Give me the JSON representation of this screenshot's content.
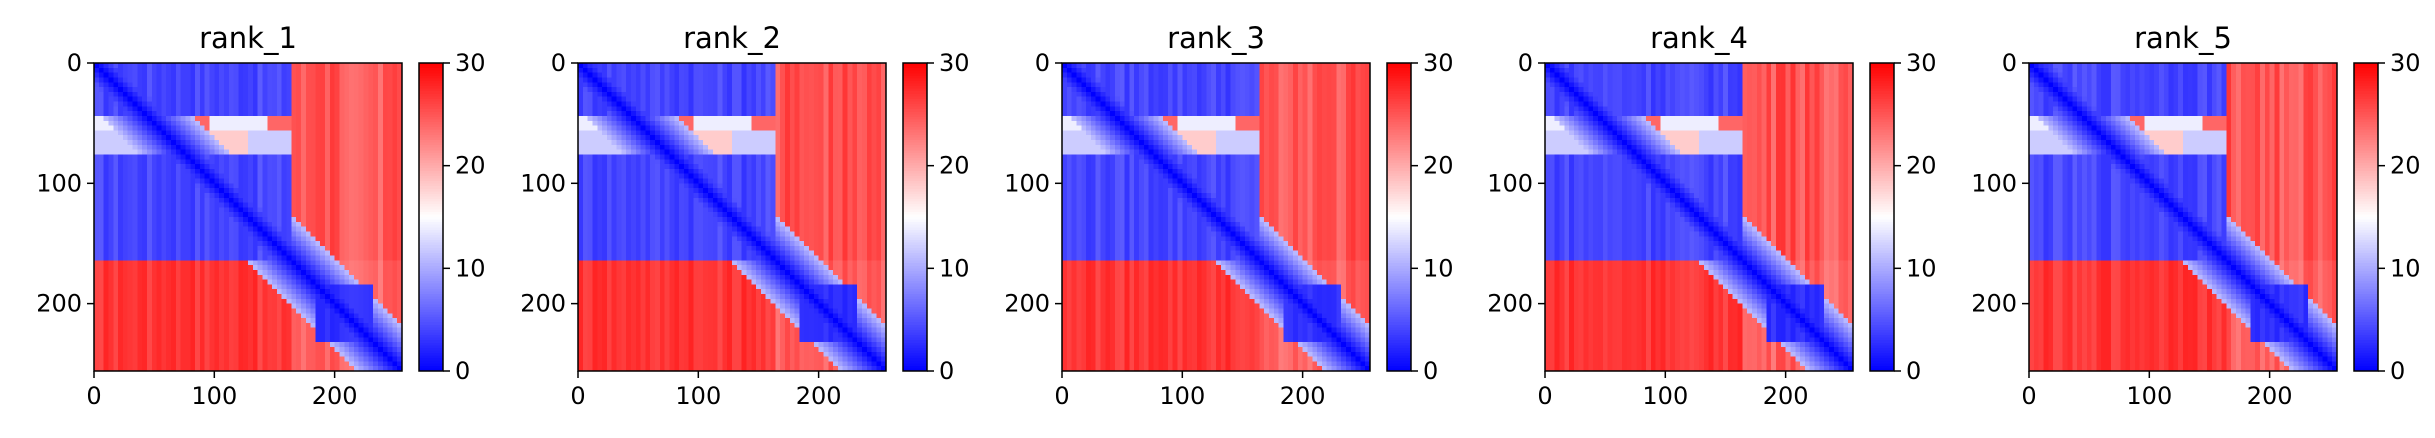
{
  "figure": {
    "panel_count": 5
  },
  "chart_data": [
    {
      "type": "heatmap",
      "title": "rank_1",
      "xlim": [
        0,
        256
      ],
      "ylim": [
        256,
        0
      ],
      "x_ticks": [
        0,
        100,
        200
      ],
      "y_ticks": [
        0,
        100,
        200
      ],
      "colorbar": {
        "min": 0,
        "max": 30,
        "ticks": [
          0,
          10,
          20,
          30
        ],
        "colors": [
          "#0000ff",
          "#ffffff",
          "#ff0000"
        ]
      },
      "matrix_summary": {
        "blue_region_end": 165,
        "red_level": 30,
        "sub_block": [
          185,
          230
        ],
        "stripe_rows": [
          51,
          64
        ]
      }
    },
    {
      "type": "heatmap",
      "title": "rank_2",
      "xlim": [
        0,
        256
      ],
      "ylim": [
        256,
        0
      ],
      "x_ticks": [
        0,
        100,
        200
      ],
      "y_ticks": [
        0,
        100,
        200
      ],
      "colorbar": {
        "min": 0,
        "max": 30,
        "ticks": [
          0,
          10,
          20,
          30
        ],
        "colors": [
          "#0000ff",
          "#ffffff",
          "#ff0000"
        ]
      },
      "matrix_summary": {
        "blue_region_end": 165,
        "red_level": 30,
        "sub_block": [
          185,
          230
        ],
        "stripe_rows": [
          51,
          64
        ]
      }
    },
    {
      "type": "heatmap",
      "title": "rank_3",
      "xlim": [
        0,
        256
      ],
      "ylim": [
        256,
        0
      ],
      "x_ticks": [
        0,
        100,
        200
      ],
      "y_ticks": [
        0,
        100,
        200
      ],
      "colorbar": {
        "min": 0,
        "max": 30,
        "ticks": [
          0,
          10,
          20,
          30
        ],
        "colors": [
          "#0000ff",
          "#ffffff",
          "#ff0000"
        ]
      },
      "matrix_summary": {
        "blue_region_end": 165,
        "red_level": 30,
        "sub_block": [
          185,
          230
        ],
        "stripe_rows": [
          51,
          64
        ]
      }
    },
    {
      "type": "heatmap",
      "title": "rank_4",
      "xlim": [
        0,
        256
      ],
      "ylim": [
        256,
        0
      ],
      "x_ticks": [
        0,
        100,
        200
      ],
      "y_ticks": [
        0,
        100,
        200
      ],
      "colorbar": {
        "min": 0,
        "max": 30,
        "ticks": [
          0,
          10,
          20,
          30
        ],
        "colors": [
          "#0000ff",
          "#ffffff",
          "#ff0000"
        ]
      },
      "matrix_summary": {
        "blue_region_end": 165,
        "red_level": 30,
        "sub_block": [
          185,
          230
        ],
        "stripe_rows": [
          51,
          64
        ]
      }
    },
    {
      "type": "heatmap",
      "title": "rank_5",
      "xlim": [
        0,
        256
      ],
      "ylim": [
        256,
        0
      ],
      "x_ticks": [
        0,
        100,
        200
      ],
      "y_ticks": [
        0,
        100,
        200
      ],
      "colorbar": {
        "min": 0,
        "max": 30,
        "ticks": [
          0,
          10,
          20,
          30
        ],
        "colors": [
          "#0000ff",
          "#ffffff",
          "#ff0000"
        ]
      },
      "matrix_summary": {
        "blue_region_end": 165,
        "red_level": 30,
        "sub_block": [
          185,
          230
        ],
        "stripe_rows": [
          51,
          64
        ]
      }
    }
  ]
}
